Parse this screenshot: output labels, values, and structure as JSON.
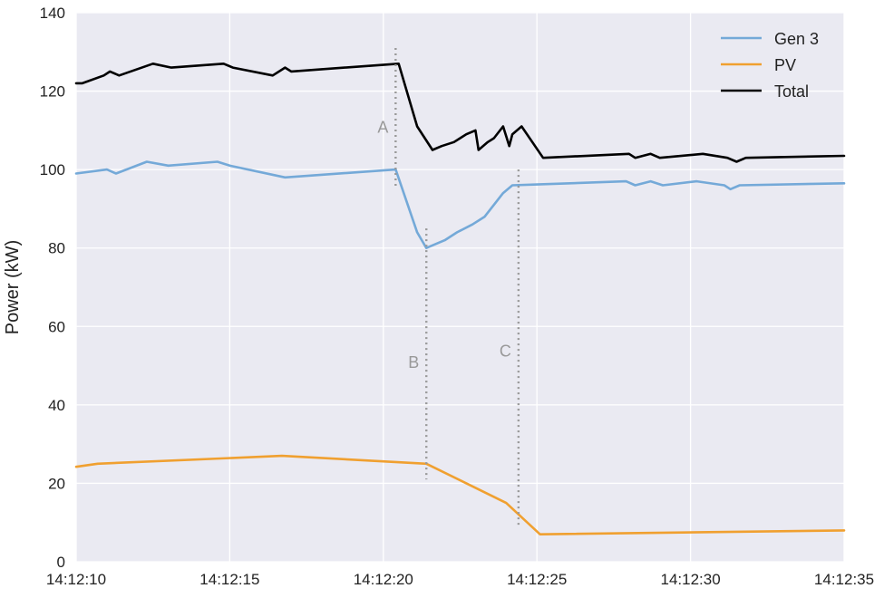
{
  "chart_data": {
    "type": "line",
    "title": "",
    "xlabel": "",
    "ylabel": "Power (kW)",
    "xlim": [
      "14:12:10",
      "14:12:35"
    ],
    "ylim": [
      0,
      140
    ],
    "x_ticks": [
      "14:12:10",
      "14:12:15",
      "14:12:20",
      "14:12:25",
      "14:12:30",
      "14:12:35"
    ],
    "y_ticks": [
      0,
      20,
      40,
      60,
      80,
      100,
      120,
      140
    ],
    "grid": true,
    "background_color": "#eaeaf2",
    "legend_position": "top-right",
    "series": [
      {
        "name": "Gen 3",
        "color": "#74a9d8",
        "points": [
          [
            "14:12:10.0",
            99
          ],
          [
            "14:12:11.0",
            100
          ],
          [
            "14:12:11.3",
            99
          ],
          [
            "14:12:12.3",
            102
          ],
          [
            "14:12:13.0",
            101
          ],
          [
            "14:12:14.6",
            102
          ],
          [
            "14:12:15.0",
            101
          ],
          [
            "14:12:16.8",
            98
          ],
          [
            "14:12:20.4",
            100
          ],
          [
            "14:12:21.1",
            84
          ],
          [
            "14:12:21.4",
            80
          ],
          [
            "14:12:22.0",
            82
          ],
          [
            "14:12:22.4",
            84
          ],
          [
            "14:12:22.9",
            86
          ],
          [
            "14:12:23.3",
            88
          ],
          [
            "14:12:23.9",
            94
          ],
          [
            "14:12:24.2",
            96
          ],
          [
            "14:12:25.0",
            96.2
          ],
          [
            "14:12:27.9",
            97
          ],
          [
            "14:12:28.2",
            96
          ],
          [
            "14:12:28.7",
            97
          ],
          [
            "14:12:29.1",
            96
          ],
          [
            "14:12:30.2",
            97
          ],
          [
            "14:12:31.1",
            96
          ],
          [
            "14:12:31.3",
            95
          ],
          [
            "14:12:31.6",
            96
          ],
          [
            "14:12:35.0",
            96.5
          ]
        ]
      },
      {
        "name": "PV",
        "color": "#f0a030",
        "points": [
          [
            "14:12:10.0",
            24.2
          ],
          [
            "14:12:10.7",
            25
          ],
          [
            "14:12:16.7",
            27
          ],
          [
            "14:12:21.4",
            25
          ],
          [
            "14:12:22.7",
            20
          ],
          [
            "14:12:24.0",
            15
          ],
          [
            "14:12:25.1",
            7
          ],
          [
            "14:12:35.0",
            8
          ]
        ]
      },
      {
        "name": "Total",
        "color": "#000000",
        "points": [
          [
            "14:12:10.0",
            122
          ],
          [
            "14:12:10.2",
            122
          ],
          [
            "14:12:10.9",
            124
          ],
          [
            "14:12:11.1",
            125
          ],
          [
            "14:12:11.4",
            124
          ],
          [
            "14:12:12.5",
            127
          ],
          [
            "14:12:13.1",
            126
          ],
          [
            "14:12:14.8",
            127
          ],
          [
            "14:12:15.1",
            126
          ],
          [
            "14:12:16.4",
            124
          ],
          [
            "14:12:16.8",
            126
          ],
          [
            "14:12:17.0",
            125
          ],
          [
            "14:12:20.5",
            127
          ],
          [
            "14:12:21.1",
            111
          ],
          [
            "14:12:21.6",
            105
          ],
          [
            "14:12:21.9",
            106
          ],
          [
            "14:12:22.3",
            107
          ],
          [
            "14:12:22.7",
            109
          ],
          [
            "14:12:23.0",
            110
          ],
          [
            "14:12:23.1",
            105
          ],
          [
            "14:12:23.4",
            107
          ],
          [
            "14:12:23.6",
            108
          ],
          [
            "14:12:23.9",
            111
          ],
          [
            "14:12:24.1",
            106
          ],
          [
            "14:12:24.2",
            109
          ],
          [
            "14:12:24.5",
            111
          ],
          [
            "14:12:25.2",
            103
          ],
          [
            "14:12:28.0",
            104
          ],
          [
            "14:12:28.2",
            103
          ],
          [
            "14:12:28.7",
            104
          ],
          [
            "14:12:29.0",
            103
          ],
          [
            "14:12:30.4",
            104
          ],
          [
            "14:12:31.2",
            103
          ],
          [
            "14:12:31.5",
            102
          ],
          [
            "14:12:31.8",
            103
          ],
          [
            "14:12:35.0",
            103.5
          ]
        ]
      }
    ],
    "annotations": [
      {
        "label": "A",
        "x": "14:12:20.4",
        "y_range": [
          95,
          131
        ],
        "label_y": 111,
        "label_side": "left"
      },
      {
        "label": "B",
        "x": "14:12:21.4",
        "y_range": [
          21,
          85
        ],
        "label_y": 51,
        "label_side": "left"
      },
      {
        "label": "C",
        "x": "14:12:24.4",
        "y_range": [
          9,
          100
        ],
        "label_y": 54,
        "label_side": "left"
      }
    ],
    "annotation_color": "#999999"
  }
}
